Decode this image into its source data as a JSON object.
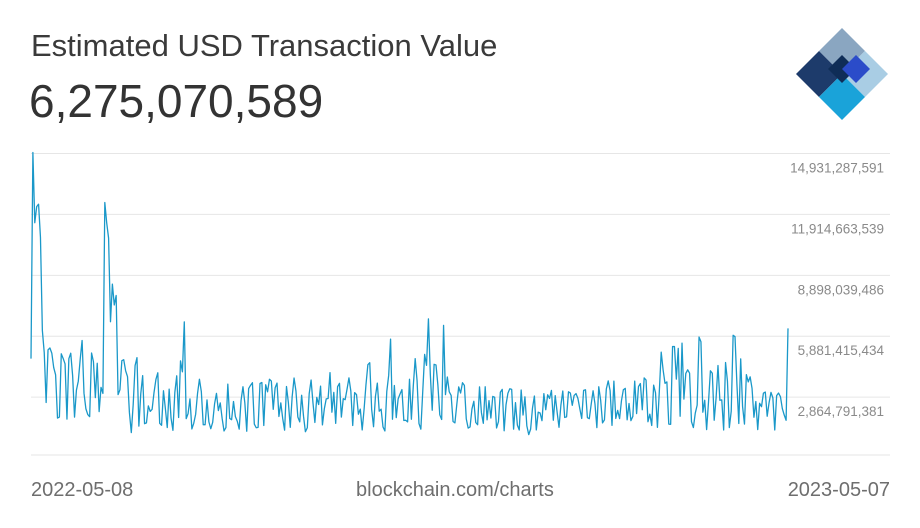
{
  "header": {
    "title": "Estimated USD Transaction Value",
    "current_value": "6,275,070,589"
  },
  "logo": {
    "icon": "blockchain-logo-icon"
  },
  "footer": {
    "start_date": "2022-05-08",
    "source": "blockchain.com/charts",
    "end_date": "2023-05-07"
  },
  "colors": {
    "line": "#1a98c9",
    "grid": "#e6e6e6",
    "tick": "#8a8a8a"
  },
  "chart_data": {
    "type": "line",
    "title": "Estimated USD Transaction Value",
    "x_range": [
      "2022-05-08",
      "2023-05-07"
    ],
    "ylim": [
      0,
      15500000000
    ],
    "y_ticks": [
      2864791381,
      5881415434,
      8898039486,
      11914663539,
      14931287591
    ],
    "y_tick_labels": [
      "2,864,791,381",
      "5,881,415,434",
      "8,898,039,486",
      "11,914,663,539",
      "14,931,287,591"
    ],
    "grid": true,
    "series": [
      {
        "values": [
          4770000000,
          14980000000,
          11500000000,
          12300000000,
          12420000000,
          10780000000,
          6170000000,
          5060000000,
          2600000000,
          5210000000,
          5300000000,
          5040000000,
          4330000000,
          3970000000,
          1830000000,
          1880000000,
          5010000000,
          4780000000,
          4510000000,
          1780000000,
          4770000000,
          5040000000,
          3930000000,
          1880000000,
          3210000000,
          3660000000,
          4740000000,
          5670000000,
          3060000000,
          2290000000,
          2000000000,
          1900000000,
          5050000000,
          4620000000,
          2840000000,
          4540000000,
          2150000000,
          3350000000,
          3050000000,
          12500000000,
          11500000000,
          10740000000,
          6600000000,
          8460000000,
          7430000000,
          7900000000,
          2990000000,
          3230000000,
          4670000000,
          4720000000,
          4170000000,
          3880000000,
          2100000000,
          1110000000,
          2500000000,
          4430000000,
          4820000000,
          1430000000,
          3030000000,
          3930000000,
          1550000000,
          1590000000,
          2430000000,
          2160000000,
          2260000000,
          3090000000,
          3740000000,
          4070000000,
          1570000000,
          1470000000,
          3180000000,
          2300000000,
          1360000000,
          3260000000,
          1830000000,
          1220000000,
          3100000000,
          3920000000,
          1860000000,
          4660000000,
          4120000000,
          6590000000,
          1800000000,
          2050000000,
          2780000000,
          1290000000,
          1570000000,
          2020000000,
          3050000000,
          3750000000,
          3140000000,
          1500000000,
          1500000000,
          2730000000,
          1640000000,
          1300000000,
          1620000000,
          2530000000,
          3050000000,
          2200000000,
          2580000000,
          1810000000,
          1190000000,
          1360000000,
          3510000000,
          1810000000,
          1750000000,
          2650000000,
          1900000000,
          1670000000,
          1280000000,
          2710000000,
          3380000000,
          2570000000,
          1180000000,
          3290000000,
          3450000000,
          3580000000,
          1530000000,
          1350000000,
          1370000000,
          3540000000,
          3590000000,
          1460000000,
          3480000000,
          3130000000,
          3750000000,
          3660000000,
          2260000000,
          3330000000,
          3560000000,
          1910000000,
          2580000000,
          1810000000,
          1230000000,
          3390000000,
          2590000000,
          1370000000,
          2890000000,
          3810000000,
          3170000000,
          1880000000,
          1640000000,
          2960000000,
          1920000000,
          1150000000,
          1350000000,
          3040000000,
          3710000000,
          2580000000,
          1610000000,
          2850000000,
          2500000000,
          3410000000,
          1490000000,
          2290000000,
          2780000000,
          2800000000,
          4080000000,
          2120000000,
          3100000000,
          1570000000,
          3380000000,
          3550000000,
          1880000000,
          2790000000,
          2740000000,
          3260000000,
          3820000000,
          3170000000,
          1460000000,
          3090000000,
          2990000000,
          2020000000,
          2270000000,
          1240000000,
          2260000000,
          3480000000,
          4470000000,
          4570000000,
          2270000000,
          1400000000,
          2900000000,
          3560000000,
          2170000000,
          2270000000,
          1390000000,
          1190000000,
          3150000000,
          3940000000,
          5740000000,
          1770000000,
          3440000000,
          1850000000,
          2780000000,
          3020000000,
          3240000000,
          1710000000,
          1720000000,
          1640000000,
          3750000000,
          1770000000,
          3420000000,
          4770000000,
          3680000000,
          1560000000,
          1280000000,
          3150000000,
          4980000000,
          4440000000,
          6740000000,
          3990000000,
          2220000000,
          4490000000,
          4460000000,
          3460000000,
          1990000000,
          1760000000,
          6420000000,
          2990000000,
          3860000000,
          3130000000,
          2950000000,
          1660000000,
          1590000000,
          2510000000,
          3370000000,
          3070000000,
          3580000000,
          3450000000,
          1790000000,
          1330000000,
          1390000000,
          2280000000,
          2660000000,
          1610000000,
          1500000000,
          3370000000,
          2100000000,
          1570000000,
          3380000000,
          1740000000,
          2690000000,
          1830000000,
          2900000000,
          2860000000,
          1340000000,
          1650000000,
          3110000000,
          3250000000,
          1200000000,
          2490000000,
          3060000000,
          3280000000,
          3250000000,
          1280000000,
          2590000000,
          1480000000,
          1240000000,
          3220000000,
          1980000000,
          2880000000,
          1440000000,
          1010000000,
          1280000000,
          2330000000,
          2920000000,
          1240000000,
          2120000000,
          2080000000,
          1700000000,
          3040000000,
          2240000000,
          2980000000,
          2800000000,
          3200000000,
          1720000000,
          2940000000,
          2120000000,
          1370000000,
          2470000000,
          3170000000,
          1860000000,
          1890000000,
          3130000000,
          3070000000,
          2460000000,
          2950000000,
          3040000000,
          2800000000,
          2290000000,
          1810000000,
          3200000000,
          3230000000,
          1850000000,
          1800000000,
          2510000000,
          3180000000,
          2530000000,
          1360000000,
          3380000000,
          2720000000,
          1590000000,
          1740000000,
          3270000000,
          3670000000,
          3190000000,
          1470000000,
          3660000000,
          1810000000,
          2210000000,
          1800000000,
          2690000000,
          3230000000,
          3300000000,
          1740000000,
          2550000000,
          1700000000,
          1910000000,
          3660000000,
          2050000000,
          3390000000,
          3540000000,
          2240000000,
          3820000000,
          3710000000,
          1650000000,
          2020000000,
          1460000000,
          3460000000,
          3080000000,
          1370000000,
          3140000000,
          5090000000,
          4220000000,
          3550000000,
          3620000000,
          1530000000,
          1520000000,
          5370000000,
          5370000000,
          3760000000,
          5280000000,
          1920000000,
          5540000000,
          2770000000,
          4040000000,
          4220000000,
          4050000000,
          1650000000,
          1360000000,
          2070000000,
          2470000000,
          5840000000,
          5610000000,
          2120000000,
          2710000000,
          1260000000,
          2630000000,
          4170000000,
          4050000000,
          1720000000,
          2820000000,
          4430000000,
          2710000000,
          2730000000,
          1240000000,
          4580000000,
          3660000000,
          1360000000,
          2170000000,
          5930000000,
          5860000000,
          3520000000,
          1560000000,
          4760000000,
          2400000000,
          1530000000,
          3980000000,
          3620000000,
          3870000000,
          3300000000,
          1870000000,
          2650000000,
          1260000000,
          2560000000,
          2390000000,
          3060000000,
          3120000000,
          1920000000,
          2590000000,
          3100000000,
          2830000000,
          1240000000,
          2940000000,
          3070000000,
          2890000000,
          2300000000,
          1980000000,
          1720000000,
          6270000000
        ]
      }
    ]
  }
}
